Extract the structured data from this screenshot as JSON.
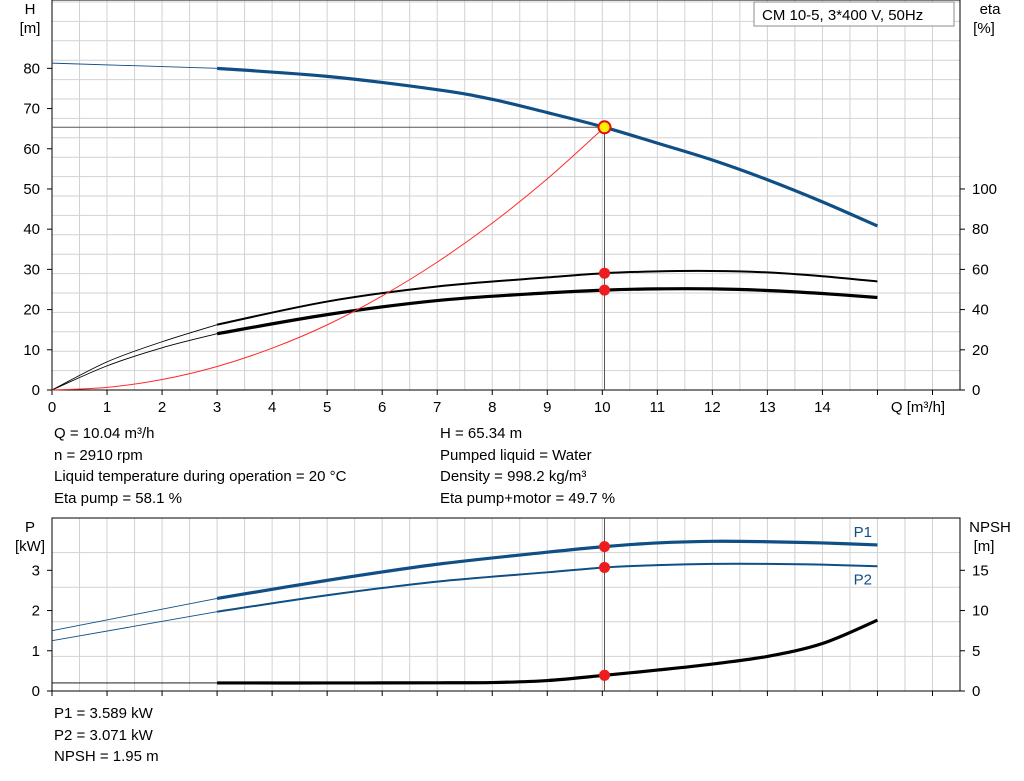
{
  "chart_data": [
    {
      "type": "line",
      "title": "CM 10-5, 3*400 V, 50Hz",
      "xlabel": "Q [m³/h]",
      "ylabel": "H [m]",
      "y2label": "eta [%]",
      "left_axis": {
        "unit_line1": "H",
        "unit_line2": "[m]"
      },
      "right_axis": {
        "unit_line1": "eta",
        "unit_line2": "[%]"
      },
      "x_axis_label": "Q [m³/h]",
      "xlim": [
        0,
        16.5
      ],
      "ylim": [
        0,
        97
      ],
      "y2lim": [
        0,
        194
      ],
      "xticks": [
        "0",
        "1",
        "2",
        "3",
        "4",
        "5",
        "6",
        "7",
        "8",
        "9",
        "10",
        "11",
        "12",
        "13",
        "14"
      ],
      "yticks": [
        "0",
        "10",
        "20",
        "30",
        "40",
        "50",
        "60",
        "70",
        "80"
      ],
      "y2ticks": [
        "0",
        "20",
        "40",
        "60",
        "80",
        "100"
      ],
      "grid": true,
      "series": [
        {
          "id": "H",
          "axis": "left",
          "color": "#0f4f85",
          "width": 3.2,
          "dashed_x": [
            0,
            3
          ],
          "x": [
            0,
            3,
            5,
            7,
            8,
            9,
            10.04,
            11,
            12,
            13,
            14,
            15
          ],
          "y": [
            81.3,
            80.0,
            78.0,
            74.7,
            72.3,
            69.0,
            65.34,
            61.4,
            57.2,
            52.3,
            46.8,
            40.8
          ]
        },
        {
          "id": "eta_pump_motor",
          "axis": "right",
          "color": "#000000",
          "width": 3.2,
          "dashed_x": [
            0,
            3
          ],
          "x": [
            0,
            1,
            2,
            3,
            5,
            7,
            9,
            10.04,
            11,
            12,
            13,
            14,
            15
          ],
          "y": [
            0,
            12,
            21,
            28,
            37.5,
            44.5,
            48.3,
            49.7,
            50.3,
            50.3,
            49.5,
            48.0,
            46.0
          ]
        },
        {
          "id": "eta_pump",
          "axis": "right",
          "color": "#000000",
          "width": 2,
          "dashed_x": [
            0,
            3
          ],
          "x": [
            0,
            1,
            2,
            3,
            5,
            7,
            9,
            10.04,
            11,
            12,
            13,
            14,
            15
          ],
          "y": [
            0,
            14,
            24,
            32.5,
            44,
            51.5,
            56,
            58.1,
            59,
            59.2,
            58.5,
            56.6,
            54
          ]
        },
        {
          "id": "system_curve",
          "axis": "left",
          "color": "#ff2a2a",
          "width": 1,
          "x": [
            0,
            1,
            2,
            3,
            4,
            5,
            6,
            7,
            8,
            9,
            10.04
          ],
          "y": [
            0,
            0.65,
            2.6,
            5.85,
            10.4,
            16.2,
            23.4,
            31.8,
            41.5,
            52.5,
            65.34
          ]
        }
      ],
      "hline": {
        "y": 65.34
      },
      "vline": {
        "x": 10.04
      },
      "op_point": {
        "x": 10.04,
        "y": 65.34
      },
      "markers_right": [
        {
          "x": 10.04,
          "y": 58.1
        },
        {
          "x": 10.04,
          "y": 49.7
        }
      ]
    },
    {
      "type": "line",
      "ylabel": "P [kW]",
      "y2label": "NPSH [m]",
      "left_axis": {
        "unit_line1": "P",
        "unit_line2": "[kW]"
      },
      "right_axis": {
        "unit_line1": "NPSH",
        "unit_line2": "[m]"
      },
      "xlim": [
        0,
        16.5
      ],
      "ylim": [
        0,
        4.3
      ],
      "y2lim": [
        0,
        21.5
      ],
      "yticks": [
        "0",
        "1",
        "2",
        "3"
      ],
      "y2ticks": [
        "0",
        "5",
        "10",
        "15"
      ],
      "grid": true,
      "series": [
        {
          "id": "P1",
          "name": "P1",
          "axis": "left",
          "color": "#0f4f85",
          "width": 3.2,
          "dashed_x": [
            0,
            3
          ],
          "x": [
            0,
            3,
            5,
            7,
            9,
            10.04,
            11,
            12,
            13,
            14,
            15
          ],
          "y": [
            1.5,
            2.3,
            2.75,
            3.15,
            3.45,
            3.589,
            3.68,
            3.72,
            3.71,
            3.68,
            3.63
          ]
        },
        {
          "id": "P2",
          "name": "P2",
          "axis": "left",
          "color": "#0f4f85",
          "width": 2,
          "dashed_x": [
            0,
            3
          ],
          "x": [
            0,
            3,
            5,
            7,
            9,
            10.04,
            11,
            12,
            13,
            14,
            15
          ],
          "y": [
            1.25,
            1.97,
            2.38,
            2.72,
            2.95,
            3.071,
            3.13,
            3.16,
            3.16,
            3.14,
            3.1
          ]
        },
        {
          "id": "NPSH",
          "axis": "right",
          "color": "#000000",
          "width": 3.2,
          "dashed_x": [
            0,
            3
          ],
          "x": [
            0,
            3,
            5,
            7,
            8,
            9,
            10.04,
            11,
            12,
            13,
            14,
            15
          ],
          "y": [
            1.0,
            1.0,
            1.0,
            1.02,
            1.05,
            1.3,
            1.95,
            2.6,
            3.35,
            4.3,
            5.9,
            8.8
          ]
        }
      ],
      "vline": {
        "x": 10.04
      },
      "markers": [
        {
          "axis": "left",
          "x": 10.04,
          "y": 3.589
        },
        {
          "axis": "left",
          "x": 10.04,
          "y": 3.071
        },
        {
          "axis": "right",
          "x": 10.04,
          "y": 1.95
        }
      ],
      "labels": [
        {
          "text": "P1",
          "series": "P1"
        },
        {
          "text": "P2",
          "series": "P2"
        }
      ]
    }
  ],
  "info": {
    "q": "Q = 10.04 m³/h",
    "n": "n = 2910 rpm",
    "temp": "Liquid temperature during operation = 20 °C",
    "eta_pump": "Eta pump = 58.1 %",
    "h": "H = 65.34 m",
    "liquid": "Pumped liquid = Water",
    "density": "Density = 998.2 kg/m³",
    "eta_pm": "Eta pump+motor = 49.7 %",
    "p1": "P1 = 3.589 kW",
    "p2": "P2 = 3.071 kW",
    "npsh": "NPSH = 1.95 m"
  }
}
